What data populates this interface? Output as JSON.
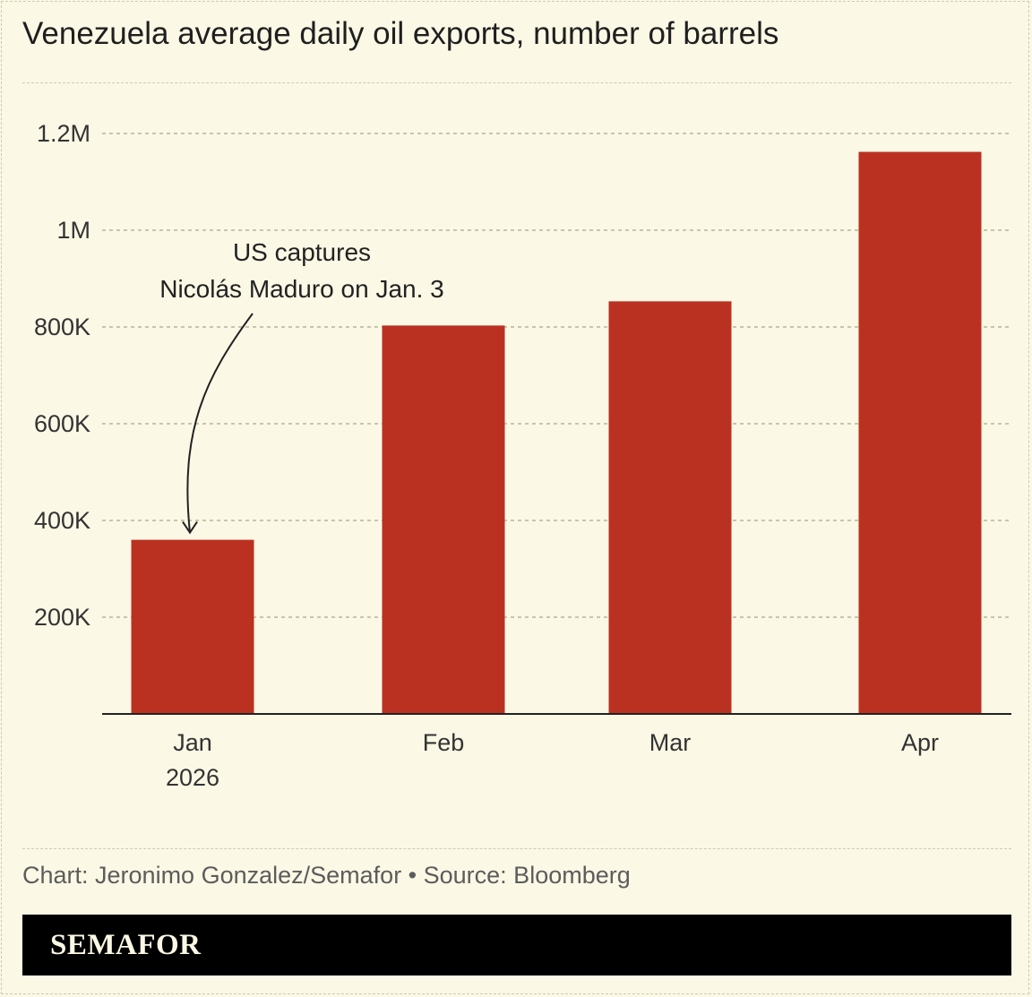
{
  "title": "Venezuela average daily oil exports, number of barrels",
  "credit": "Chart: Jeronimo Gonzalez/Semafor • Source: Bloomberg",
  "brand": "SEMAFOR",
  "colors": {
    "background": "#fbf8e5",
    "bar": "#bb3121",
    "brandbar": "#000000"
  },
  "chart_data": {
    "type": "bar",
    "title": "Venezuela average daily oil exports, number of barrels",
    "categories": [
      "Jan 2026",
      "Feb",
      "Mar",
      "Apr"
    ],
    "category_labels": [
      [
        "Jan",
        "2026"
      ],
      [
        "Feb"
      ],
      [
        "Mar"
      ],
      [
        "Apr"
      ]
    ],
    "values": [
      360000,
      803000,
      853000,
      1162000
    ],
    "ylim": [
      0,
      1200000
    ],
    "yticks": [
      200000,
      400000,
      600000,
      800000,
      1000000,
      1200000
    ],
    "ytick_labels": [
      "200K",
      "400K",
      "600K",
      "800K",
      "1M",
      "1.2M"
    ],
    "grid": true,
    "annotation": {
      "category": "Jan 2026",
      "lines": [
        "US captures",
        "Nicolás Maduro on Jan. 3"
      ]
    }
  }
}
